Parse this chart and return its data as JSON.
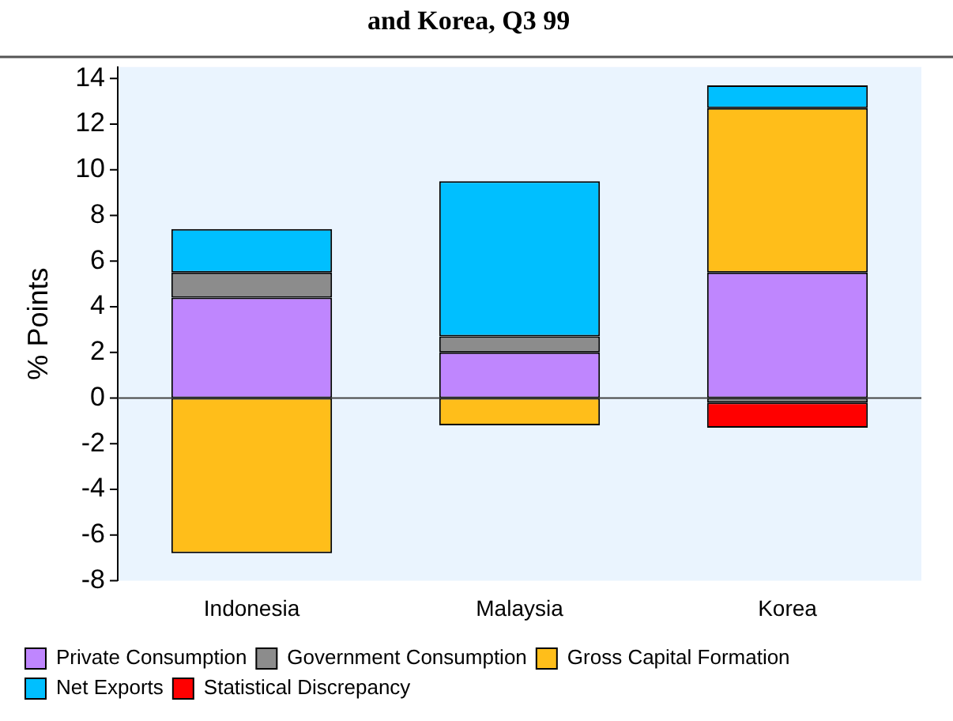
{
  "chart_data": {
    "type": "bar",
    "title": "and Korea, Q3 99",
    "ylabel": "% Points",
    "stacked": true,
    "categories": [
      "Indonesia",
      "Malaysia",
      "Korea"
    ],
    "series": [
      {
        "name": "Private Consumption",
        "color": "#bf86fe",
        "values": [
          4.4,
          2.0,
          5.5
        ]
      },
      {
        "name": "Government Consumption",
        "color": "#8c8c8c",
        "values": [
          1.1,
          0.7,
          -0.2
        ]
      },
      {
        "name": "Gross Capital Formation",
        "color": "#ffbe1a",
        "values": [
          -6.8,
          -1.2,
          7.2
        ]
      },
      {
        "name": "Net Exports",
        "color": "#00bfff",
        "values": [
          1.9,
          6.8,
          1.0
        ]
      },
      {
        "name": "Statistical Discrepancy",
        "color": "#ff0000",
        "values": [
          null,
          null,
          -1.1
        ]
      }
    ],
    "ylim": [
      -8,
      14.5
    ],
    "yticks": [
      -8,
      -6,
      -4,
      -2,
      0,
      2,
      4,
      6,
      8,
      10,
      12,
      14
    ],
    "grid": false,
    "ref_lines": [
      {
        "axis": "y",
        "value": 0,
        "color": "#444444"
      }
    ],
    "legend": "bottom"
  }
}
